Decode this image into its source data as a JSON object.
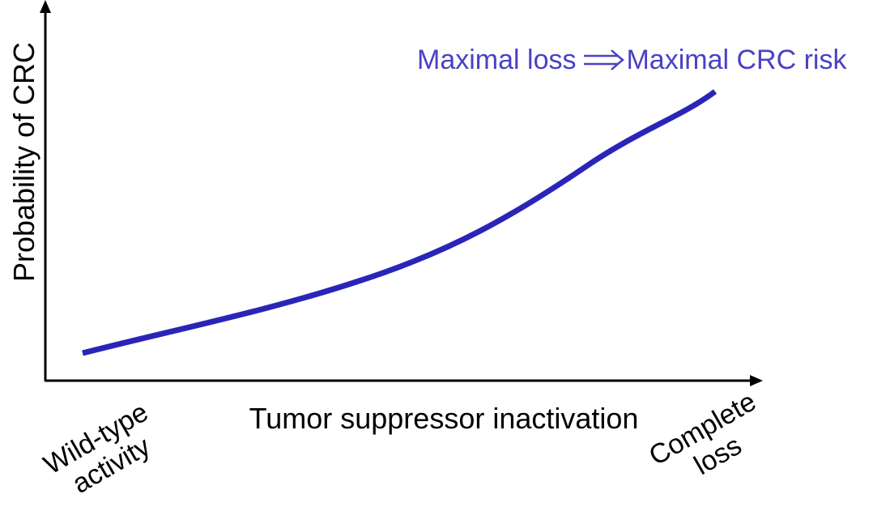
{
  "diagram": {
    "y_axis_label": "Probability of CRC",
    "x_axis_label": "Tumor suppressor inactivation",
    "x_start_label": [
      "Wild-type",
      "activity"
    ],
    "x_end_label": [
      "Complete",
      "loss"
    ],
    "annotation": {
      "left_text": "Maximal loss",
      "right_text": "Maximal CRC risk"
    },
    "colors": {
      "curve": "#2a25b8",
      "annotation": "#4a41c4",
      "axes": "#000000"
    }
  }
}
